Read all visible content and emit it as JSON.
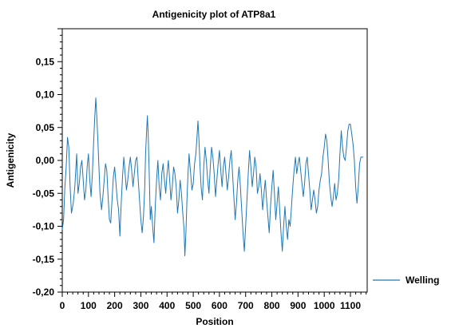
{
  "chart_data": {
    "type": "line",
    "title": "Antigenicity plot of ATP8a1",
    "xlabel": "Position",
    "ylabel": "Antigenicity",
    "xlim": [
      0,
      1164
    ],
    "ylim": [
      -0.2,
      0.2
    ],
    "x_ticks": [
      0,
      100,
      200,
      300,
      400,
      500,
      600,
      700,
      800,
      900,
      1000,
      1100
    ],
    "x_tick_labels": [
      "0",
      "100",
      "200",
      "300",
      "400",
      "500",
      "600",
      "700",
      "800",
      "900",
      "1000",
      "1100"
    ],
    "y_ticks": [
      -0.2,
      -0.15,
      -0.1,
      -0.05,
      0.0,
      0.05,
      0.1,
      0.15
    ],
    "y_tick_labels": [
      "-0,20",
      "-0,15",
      "-0,10",
      "-0,05",
      "0,00",
      "0,05",
      "0,10",
      "0,15"
    ],
    "grid": false,
    "legend_position": "right",
    "series": [
      {
        "name": "Welling",
        "color": "#1f77b4",
        "points": [
          [
            0,
            -0.105
          ],
          [
            5,
            -0.09
          ],
          [
            10,
            -0.04
          ],
          [
            15,
            -0.01
          ],
          [
            20,
            0.035
          ],
          [
            25,
            0.02
          ],
          [
            30,
            -0.04
          ],
          [
            35,
            -0.08
          ],
          [
            42,
            -0.065
          ],
          [
            48,
            -0.04
          ],
          [
            55,
            0.01
          ],
          [
            60,
            -0.05
          ],
          [
            65,
            -0.035
          ],
          [
            70,
            -0.01
          ],
          [
            75,
            0.0
          ],
          [
            80,
            -0.03
          ],
          [
            85,
            -0.06
          ],
          [
            90,
            -0.045
          ],
          [
            95,
            -0.01
          ],
          [
            100,
            0.01
          ],
          [
            105,
            -0.03
          ],
          [
            110,
            -0.055
          ],
          [
            115,
            -0.02
          ],
          [
            120,
            0.03
          ],
          [
            124,
            0.065
          ],
          [
            128,
            0.095
          ],
          [
            132,
            0.065
          ],
          [
            136,
            0.03
          ],
          [
            140,
            -0.01
          ],
          [
            144,
            -0.05
          ],
          [
            150,
            -0.075
          ],
          [
            155,
            -0.055
          ],
          [
            160,
            -0.03
          ],
          [
            165,
            -0.005
          ],
          [
            170,
            -0.015
          ],
          [
            175,
            -0.055
          ],
          [
            180,
            -0.09
          ],
          [
            185,
            -0.095
          ],
          [
            190,
            -0.06
          ],
          [
            195,
            -0.025
          ],
          [
            200,
            -0.01
          ],
          [
            205,
            -0.035
          ],
          [
            210,
            -0.06
          ],
          [
            215,
            -0.075
          ],
          [
            220,
            -0.115
          ],
          [
            225,
            -0.065
          ],
          [
            230,
            -0.025
          ],
          [
            235,
            0.005
          ],
          [
            240,
            -0.02
          ],
          [
            245,
            -0.045
          ],
          [
            250,
            -0.03
          ],
          [
            255,
            -0.01
          ],
          [
            260,
            0.005
          ],
          [
            265,
            -0.015
          ],
          [
            270,
            -0.04
          ],
          [
            275,
            -0.02
          ],
          [
            280,
            0.0
          ],
          [
            285,
            0.005
          ],
          [
            290,
            -0.03
          ],
          [
            295,
            -0.06
          ],
          [
            300,
            -0.09
          ],
          [
            305,
            -0.11
          ],
          [
            310,
            -0.085
          ],
          [
            315,
            -0.04
          ],
          [
            318,
            0.01
          ],
          [
            322,
            0.045
          ],
          [
            325,
            0.068
          ],
          [
            328,
            0.04
          ],
          [
            332,
            -0.02
          ],
          [
            336,
            -0.09
          ],
          [
            340,
            -0.07
          ],
          [
            345,
            -0.1
          ],
          [
            350,
            -0.125
          ],
          [
            355,
            -0.07
          ],
          [
            360,
            -0.03
          ],
          [
            365,
            0.0
          ],
          [
            370,
            -0.04
          ],
          [
            375,
            -0.06
          ],
          [
            380,
            -0.02
          ],
          [
            385,
            -0.005
          ],
          [
            390,
            -0.03
          ],
          [
            395,
            -0.05
          ],
          [
            400,
            -0.02
          ],
          [
            405,
            0.0
          ],
          [
            410,
            -0.03
          ],
          [
            415,
            -0.06
          ],
          [
            420,
            -0.04
          ],
          [
            425,
            -0.01
          ],
          [
            430,
            -0.02
          ],
          [
            435,
            -0.04
          ],
          [
            440,
            -0.08
          ],
          [
            445,
            -0.06
          ],
          [
            450,
            -0.03
          ],
          [
            455,
            -0.05
          ],
          [
            460,
            -0.08
          ],
          [
            465,
            -0.105
          ],
          [
            468,
            -0.145
          ],
          [
            472,
            -0.11
          ],
          [
            476,
            -0.06
          ],
          [
            480,
            -0.02
          ],
          [
            484,
            0.01
          ],
          [
            490,
            -0.02
          ],
          [
            495,
            -0.045
          ],
          [
            500,
            -0.035
          ],
          [
            505,
            -0.005
          ],
          [
            510,
            0.01
          ],
          [
            515,
            0.04
          ],
          [
            518,
            0.06
          ],
          [
            522,
            0.03
          ],
          [
            526,
            -0.01
          ],
          [
            530,
            -0.04
          ],
          [
            535,
            -0.06
          ],
          [
            540,
            -0.01
          ],
          [
            545,
            0.02
          ],
          [
            550,
            0.0
          ],
          [
            555,
            -0.03
          ],
          [
            560,
            -0.05
          ],
          [
            565,
            -0.01
          ],
          [
            570,
            0.02
          ],
          [
            575,
            0.005
          ],
          [
            580,
            -0.02
          ],
          [
            585,
            -0.055
          ],
          [
            590,
            -0.03
          ],
          [
            595,
            -0.005
          ],
          [
            600,
            0.015
          ],
          [
            605,
            -0.015
          ],
          [
            610,
            -0.04
          ],
          [
            615,
            -0.01
          ],
          [
            620,
            0.005
          ],
          [
            625,
            -0.02
          ],
          [
            630,
            -0.045
          ],
          [
            635,
            -0.025
          ],
          [
            640,
            0.0
          ],
          [
            645,
            0.015
          ],
          [
            650,
            -0.02
          ],
          [
            655,
            -0.055
          ],
          [
            660,
            -0.09
          ],
          [
            665,
            -0.065
          ],
          [
            670,
            -0.03
          ],
          [
            675,
            -0.01
          ],
          [
            680,
            -0.04
          ],
          [
            685,
            -0.075
          ],
          [
            690,
            -0.11
          ],
          [
            695,
            -0.138
          ],
          [
            700,
            -0.1
          ],
          [
            705,
            -0.06
          ],
          [
            710,
            -0.02
          ],
          [
            715,
            0.015
          ],
          [
            720,
            -0.01
          ],
          [
            725,
            -0.04
          ],
          [
            730,
            -0.02
          ],
          [
            735,
            0.005
          ],
          [
            740,
            -0.01
          ],
          [
            745,
            -0.05
          ],
          [
            750,
            -0.04
          ],
          [
            755,
            -0.02
          ],
          [
            760,
            -0.045
          ],
          [
            765,
            -0.075
          ],
          [
            770,
            -0.05
          ],
          [
            775,
            -0.03
          ],
          [
            780,
            -0.06
          ],
          [
            785,
            -0.085
          ],
          [
            790,
            -0.11
          ],
          [
            795,
            -0.07
          ],
          [
            800,
            -0.04
          ],
          [
            805,
            -0.015
          ],
          [
            810,
            -0.05
          ],
          [
            815,
            -0.09
          ],
          [
            820,
            -0.065
          ],
          [
            825,
            -0.04
          ],
          [
            830,
            -0.075
          ],
          [
            835,
            -0.11
          ],
          [
            840,
            -0.138
          ],
          [
            845,
            -0.1
          ],
          [
            850,
            -0.07
          ],
          [
            855,
            -0.1
          ],
          [
            860,
            -0.12
          ],
          [
            865,
            -0.09
          ],
          [
            870,
            -0.1
          ],
          [
            875,
            -0.07
          ],
          [
            880,
            -0.04
          ],
          [
            885,
            -0.015
          ],
          [
            890,
            0.005
          ],
          [
            895,
            -0.02
          ],
          [
            900,
            -0.005
          ],
          [
            905,
            0.005
          ],
          [
            910,
            -0.015
          ],
          [
            915,
            -0.035
          ],
          [
            920,
            -0.055
          ],
          [
            925,
            -0.035
          ],
          [
            930,
            -0.005
          ],
          [
            935,
            0.005
          ],
          [
            940,
            -0.02
          ],
          [
            945,
            -0.045
          ],
          [
            950,
            -0.075
          ],
          [
            955,
            -0.06
          ],
          [
            960,
            -0.045
          ],
          [
            965,
            -0.06
          ],
          [
            970,
            -0.08
          ],
          [
            975,
            -0.07
          ],
          [
            980,
            -0.045
          ],
          [
            985,
            -0.03
          ],
          [
            990,
            -0.02
          ],
          [
            995,
            0.005
          ],
          [
            1000,
            0.02
          ],
          [
            1005,
            0.04
          ],
          [
            1010,
            0.03
          ],
          [
            1015,
            0.0
          ],
          [
            1020,
            -0.035
          ],
          [
            1025,
            -0.055
          ],
          [
            1030,
            -0.07
          ],
          [
            1035,
            -0.055
          ],
          [
            1040,
            -0.035
          ],
          [
            1045,
            -0.06
          ],
          [
            1050,
            -0.05
          ],
          [
            1055,
            -0.03
          ],
          [
            1060,
            0.01
          ],
          [
            1065,
            0.045
          ],
          [
            1070,
            0.02
          ],
          [
            1075,
            0.005
          ],
          [
            1080,
            0.0
          ],
          [
            1085,
            0.02
          ],
          [
            1090,
            0.045
          ],
          [
            1095,
            0.055
          ],
          [
            1100,
            0.055
          ],
          [
            1105,
            0.04
          ],
          [
            1110,
            0.025
          ],
          [
            1115,
            0.0
          ],
          [
            1120,
            -0.04
          ],
          [
            1125,
            -0.065
          ],
          [
            1130,
            -0.04
          ],
          [
            1135,
            -0.005
          ],
          [
            1140,
            0.005
          ],
          [
            1145,
            0.005
          ],
          [
            1149,
            0.005
          ]
        ]
      }
    ]
  }
}
